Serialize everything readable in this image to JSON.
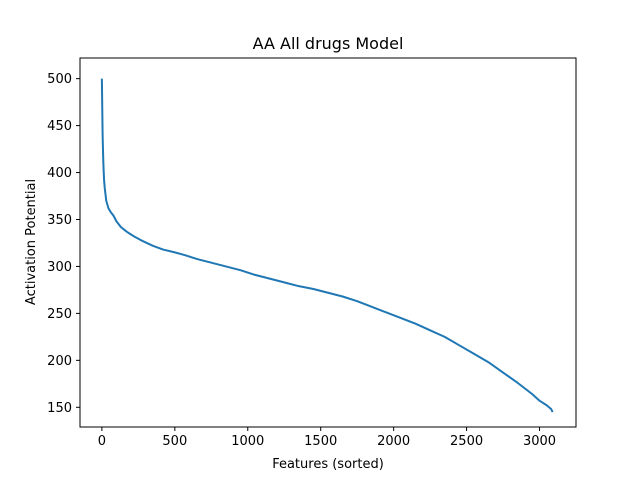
{
  "chart_data": {
    "type": "line",
    "title": "AA All drugs Model",
    "xlabel": "Features (sorted)",
    "ylabel": "Activation Potential",
    "xlim": [
      -150,
      3250
    ],
    "ylim": [
      129,
      522
    ],
    "xticks": [
      0,
      500,
      1000,
      1500,
      2000,
      2500,
      3000
    ],
    "xtick_labels": [
      "0",
      "500",
      "1000",
      "1500",
      "2000",
      "2500",
      "3000"
    ],
    "yticks": [
      150,
      200,
      250,
      300,
      350,
      400,
      450,
      500
    ],
    "ytick_labels": [
      "150",
      "200",
      "250",
      "300",
      "350",
      "400",
      "450",
      "500"
    ],
    "grid": false,
    "legend": "none",
    "series": [
      {
        "color": "#1f77b4",
        "x": [
          0,
          5,
          10,
          15,
          20,
          30,
          45,
          60,
          80,
          100,
          130,
          170,
          220,
          280,
          350,
          420,
          500,
          570,
          650,
          750,
          850,
          950,
          1050,
          1150,
          1250,
          1350,
          1450,
          1550,
          1650,
          1750,
          1850,
          1950,
          2050,
          2150,
          2250,
          2350,
          2450,
          2550,
          2650,
          2750,
          2850,
          2950,
          3000,
          3050,
          3080,
          3090
        ],
        "y": [
          500,
          440,
          410,
          392,
          383,
          370,
          362,
          358,
          354,
          348,
          342,
          337,
          332,
          327,
          322,
          318,
          315,
          312,
          308,
          304,
          300,
          296,
          291,
          287,
          283,
          279,
          276,
          272,
          268,
          263,
          257,
          251,
          245,
          239,
          232,
          225,
          216,
          207,
          198,
          187,
          176,
          164,
          157,
          152,
          148,
          145
        ]
      }
    ]
  }
}
